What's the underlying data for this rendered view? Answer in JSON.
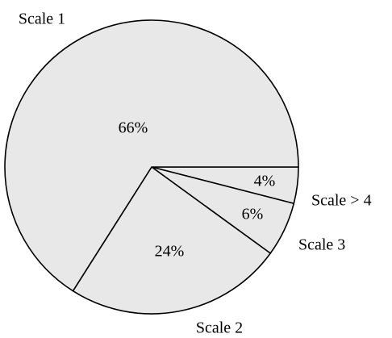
{
  "chart_data": {
    "type": "pie",
    "categories": [
      "Scale > 4",
      "Scale 3",
      "Scale 2",
      "Scale 1"
    ],
    "values": [
      4,
      6,
      24,
      66
    ],
    "value_labels": [
      "4%",
      "6%",
      "24%",
      "66%"
    ],
    "color": "#e8e8e8"
  }
}
